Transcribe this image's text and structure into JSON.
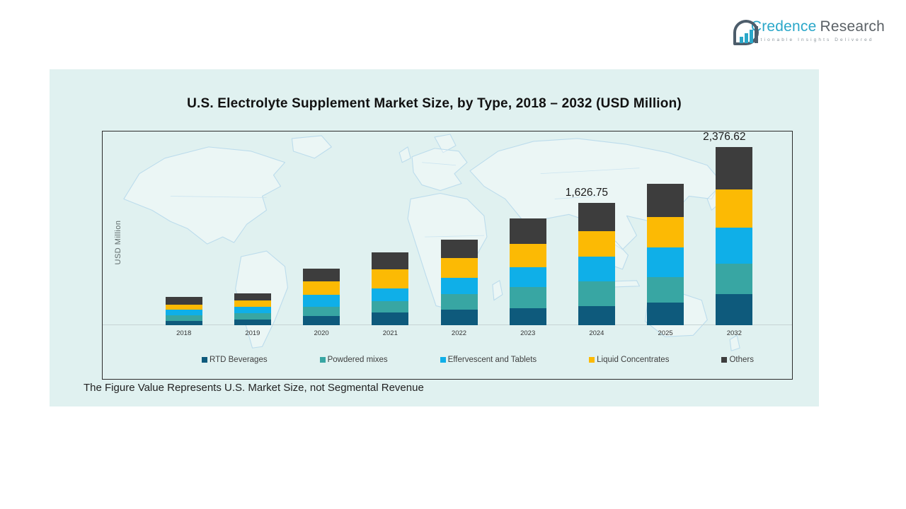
{
  "logo": {
    "brand_primary": "Credence",
    "brand_secondary": "Research",
    "tagline": "Actionable Insights Delivered",
    "brand_color": "#2AA7C9",
    "brand_gray": "#5B6166"
  },
  "panel": {
    "title": "U.S. Electrolyte Supplement Market Size, by Type, 2018 – 2032 (USD Million)",
    "footnote": "The Figure Value Represents U.S. Market Size, not Segmental Revenue",
    "background_color": "#E0F1F0"
  },
  "chart_data": {
    "type": "bar",
    "subtype": "stacked",
    "title": "U.S. Electrolyte Supplement Market Size, by Type, 2018 – 2032 (USD Million)",
    "xlabel": "",
    "ylabel": "USD Million",
    "ylim": [
      0,
      2600
    ],
    "grid": false,
    "legend_position": "bottom",
    "categories": [
      "2018",
      "2019",
      "2020",
      "2021",
      "2022",
      "2023",
      "2024",
      "2025",
      "2032"
    ],
    "series": [
      {
        "name": "RTD Beverages",
        "color": "#0E5A7C",
        "values": [
          52,
          73,
          119,
          165,
          205,
          229,
          250.4,
          305,
          411.6
        ]
      },
      {
        "name": "Powdered mixes",
        "color": "#38A6A3",
        "values": [
          76,
          85,
          126,
          153,
          208,
          282,
          330.2,
          337,
          404.4
        ]
      },
      {
        "name": "Effervescent and Tablets",
        "color": "#0FAFE8",
        "values": [
          76,
          83,
          159,
          172,
          217,
          266,
          336.6,
          392,
          486.7
        ]
      },
      {
        "name": "Liquid Concentrates",
        "color": "#FCBA04",
        "values": [
          71,
          85,
          177,
          250,
          263,
          306,
          336.6,
          404,
          507.3
        ]
      },
      {
        "name": "Others",
        "color": "#3D3D3D",
        "values": [
          98,
          98,
          174,
          229,
          250,
          339,
          372.95,
          443,
          566.62
        ]
      }
    ],
    "totals": [
      373,
      424,
      755,
      969,
      1143,
      1422,
      1626.75,
      1881,
      2376.62
    ],
    "value_labels": {
      "2024": "1,626.75",
      "2032": "2,376.62"
    },
    "annotation": "Totals shown only for 2024 and 2032"
  }
}
